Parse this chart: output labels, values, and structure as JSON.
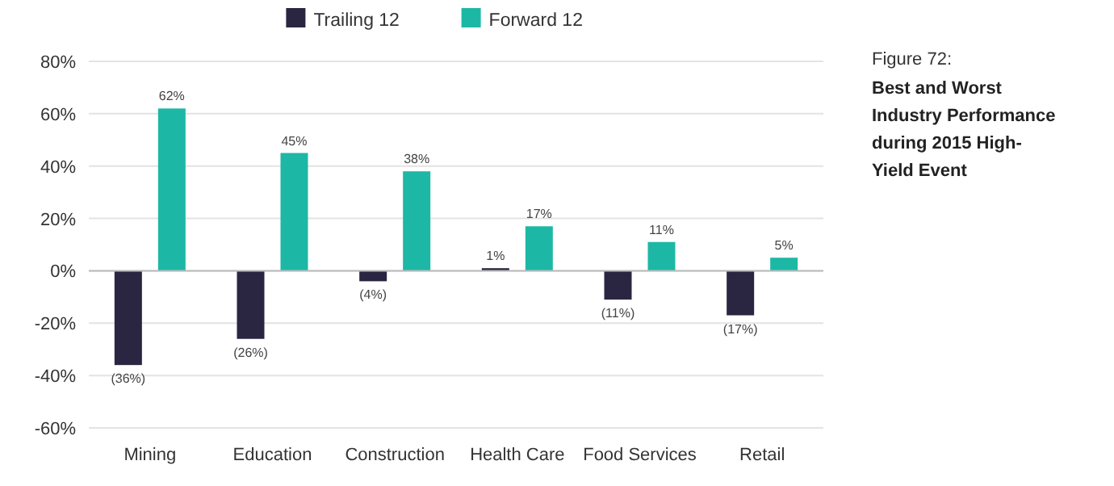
{
  "chart_data": {
    "type": "bar",
    "title": "Figure 72:",
    "subtitle": "Best and Worst Industry Performance during 2015 High-Yield Event",
    "categories": [
      "Mining",
      "Education",
      "Construction",
      "Health Care",
      "Food Services",
      "Retail"
    ],
    "series": [
      {
        "name": "Trailing 12",
        "color": "#2a2540",
        "values": [
          -36,
          -26,
          -4,
          1,
          -11,
          -17
        ],
        "value_labels": [
          "(36%)",
          "(26%)",
          "(4%)",
          "1%",
          "(11%)",
          "(17%)"
        ]
      },
      {
        "name": "Forward 12",
        "color": "#1db8a5",
        "values": [
          62,
          45,
          38,
          17,
          11,
          5
        ],
        "value_labels": [
          "62%",
          "45%",
          "38%",
          "17%",
          "11%",
          "5%"
        ]
      }
    ],
    "ylim": [
      -60,
      80
    ],
    "yticks": [
      {
        "value": -60,
        "label": "-60%"
      },
      {
        "value": -40,
        "label": "-40%"
      },
      {
        "value": -20,
        "label": "-20%"
      },
      {
        "value": 0,
        "label": "0%"
      },
      {
        "value": 20,
        "label": "20%"
      },
      {
        "value": 40,
        "label": "40%"
      },
      {
        "value": 60,
        "label": "60%"
      },
      {
        "value": 80,
        "label": "80%"
      }
    ],
    "grid": "y",
    "legend": "top"
  }
}
